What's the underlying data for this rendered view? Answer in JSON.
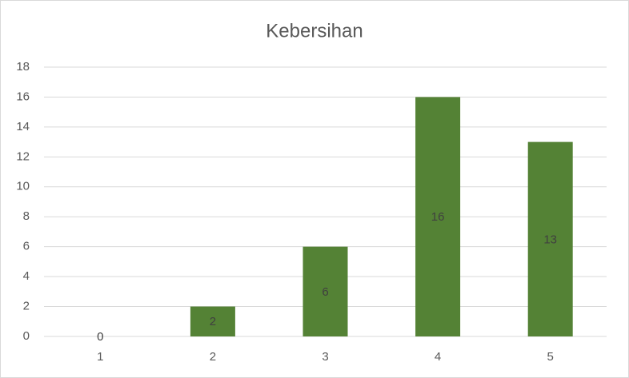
{
  "chart_data": {
    "type": "bar",
    "title": "Kebersihan",
    "categories": [
      "1",
      "2",
      "3",
      "4",
      "5"
    ],
    "values": [
      0,
      2,
      6,
      16,
      13
    ],
    "color": "#548235",
    "ylim": [
      0,
      18
    ],
    "yticks": [
      0,
      2,
      4,
      6,
      8,
      10,
      12,
      14,
      16,
      18
    ],
    "grid": true
  }
}
